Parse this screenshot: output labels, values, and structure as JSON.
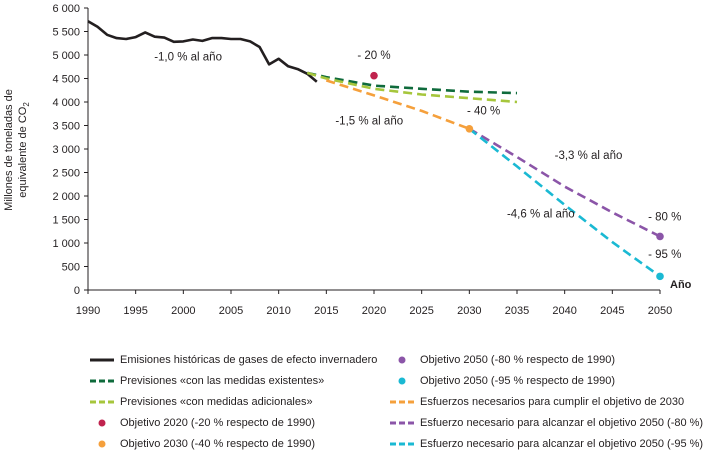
{
  "chart_data": {
    "type": "line",
    "ylabel_line1": "Millones de toneladas de",
    "ylabel_line2_prefix": "equivalente de CO",
    "ylabel_line2_sub": "2",
    "xlabel": "Año",
    "xlim": [
      1990,
      2050
    ],
    "ylim": [
      0,
      6000
    ],
    "x_ticks": [
      1990,
      1995,
      2000,
      2005,
      2010,
      2015,
      2020,
      2025,
      2030,
      2035,
      2040,
      2045,
      2050
    ],
    "y_ticks": [
      0,
      500,
      1000,
      1500,
      2000,
      2500,
      3000,
      3500,
      4000,
      4500,
      5000,
      5500,
      6000
    ],
    "y_tick_labels": [
      "0",
      "500",
      "1 000",
      "1 500",
      "2 000",
      "2 500",
      "3 000",
      "3 500",
      "4 000",
      "4 500",
      "5 000",
      "5 500",
      "6 000"
    ],
    "series": [
      {
        "name": "Emisiones históricas de gases de efecto invernadero",
        "color": "#231f20",
        "style": "solid",
        "x": [
          1990,
          1991,
          1992,
          1993,
          1994,
          1995,
          1996,
          1997,
          1998,
          1999,
          2000,
          2001,
          2002,
          2003,
          2004,
          2005,
          2006,
          2007,
          2008,
          2009,
          2010,
          2011,
          2012,
          2013,
          2014
        ],
        "y": [
          5720,
          5600,
          5430,
          5360,
          5340,
          5380,
          5480,
          5390,
          5370,
          5280,
          5290,
          5330,
          5300,
          5360,
          5360,
          5340,
          5340,
          5290,
          5170,
          4800,
          4920,
          4760,
          4700,
          4600,
          4430
        ]
      },
      {
        "name": "Previsiones «con las medidas existentes»",
        "color": "#0f6b3c",
        "style": "dashed",
        "x": [
          2013,
          2015,
          2020,
          2025,
          2030,
          2035
        ],
        "y": [
          4620,
          4530,
          4350,
          4280,
          4220,
          4190
        ]
      },
      {
        "name": "Previsiones «con medidas adicionales»",
        "color": "#a6c63c",
        "style": "dashed",
        "x": [
          2013,
          2015,
          2020,
          2025,
          2030,
          2035
        ],
        "y": [
          4620,
          4500,
          4280,
          4160,
          4080,
          4000
        ]
      },
      {
        "name": "Esfuerzos necesarios para cumplir el objetivo de 2030",
        "color": "#f5a03c",
        "style": "dashed",
        "x": [
          2015,
          2020,
          2025,
          2030
        ],
        "y": [
          4460,
          4140,
          3810,
          3430
        ]
      },
      {
        "name": "Esfuerzo necesario para alcanzar el objetivo 2050 (-80 %)",
        "color": "#8b55a8",
        "style": "dashed",
        "x": [
          2030,
          2035,
          2040,
          2045,
          2050
        ],
        "y": [
          3430,
          2830,
          2200,
          1650,
          1140
        ]
      },
      {
        "name": "Esfuerzo necesario para alcanzar el objetivo 2050 (-95 %)",
        "color": "#1ab9d3",
        "style": "dashed",
        "x": [
          2030,
          2035,
          2040,
          2045,
          2050
        ],
        "y": [
          3430,
          2630,
          1810,
          1020,
          290
        ]
      }
    ],
    "points": [
      {
        "name": "Objetivo 2020 (-20 % respecto de 1990)",
        "color": "#c0234e",
        "x": 2020,
        "y": 4560
      },
      {
        "name": "Objetivo 2030 (-40 % respecto de 1990)",
        "color": "#f5a03c",
        "x": 2030,
        "y": 3430
      },
      {
        "name": "Objetivo 2050 (-80 % respecto de 1990)",
        "color": "#8b55a8",
        "x": 2050,
        "y": 1140
      },
      {
        "name": "Objetivo 2050 (-95 % respecto de 1990)",
        "color": "#1ab9d3",
        "x": 2050,
        "y": 290
      }
    ],
    "annotations": [
      {
        "text": "-1,0 % al año",
        "x": 2000.5,
        "y": 4880
      },
      {
        "text": "- 20 %",
        "x": 2020,
        "y": 4910
      },
      {
        "text": "-1,5 % al año",
        "x": 2019.5,
        "y": 3520
      },
      {
        "text": "- 40 %",
        "x": 2031.5,
        "y": 3730
      },
      {
        "text": "-3,3 % al año",
        "x": 2042.5,
        "y": 2790
      },
      {
        "text": "-4,6 % al año",
        "x": 2037.5,
        "y": 1540
      },
      {
        "text": "- 80 %",
        "x": 2050.5,
        "y": 1480
      },
      {
        "text": "- 95 %",
        "x": 2050.5,
        "y": 680
      }
    ],
    "legend": {
      "position": "bottom",
      "items": [
        {
          "label": "Emisiones históricas de gases de efecto invernadero",
          "kind": "line-solid",
          "color": "#231f20"
        },
        {
          "label": "Previsiones «con las medidas existentes»",
          "kind": "line-dashed",
          "color": "#0f6b3c"
        },
        {
          "label": "Previsiones «con medidas adicionales»",
          "kind": "line-dashed",
          "color": "#a6c63c"
        },
        {
          "label": "Objetivo 2020 (-20 % respecto de 1990)",
          "kind": "dot",
          "color": "#c0234e"
        },
        {
          "label": "Objetivo 2030 (-40 % respecto de 1990)",
          "kind": "dot",
          "color": "#f5a03c"
        },
        {
          "label": "Objetivo 2050 (-80 % respecto de 1990)",
          "kind": "dot",
          "color": "#8b55a8"
        },
        {
          "label": "Objetivo 2050 (-95 % respecto de 1990)",
          "kind": "dot",
          "color": "#1ab9d3"
        },
        {
          "label": "Esfuerzos necesarios para cumplir el objetivo de 2030",
          "kind": "line-dashed",
          "color": "#f5a03c"
        },
        {
          "label": "Esfuerzo necesario para alcanzar el objetivo 2050 (-80 %)",
          "kind": "line-dashed",
          "color": "#8b55a8"
        },
        {
          "label": "Esfuerzo necesario para alcanzar el objetivo 2050 (-95 %)",
          "kind": "line-dashed",
          "color": "#1ab9d3"
        }
      ]
    }
  }
}
